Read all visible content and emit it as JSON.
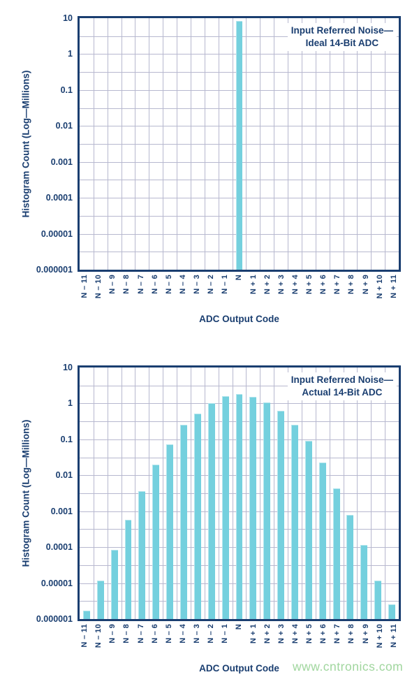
{
  "colors": {
    "navy_text_and_frame": "#1a3e70",
    "gridline": "#b7b8cf",
    "bar_fill": "#74d0de",
    "watermark_green": "#a0d69e",
    "background": "#ffffff"
  },
  "watermark": {
    "text": "www.cntronics.com"
  },
  "chart_data": [
    {
      "type": "bar",
      "title": "Input Referred Noise—Ideal 14-Bit ADC",
      "title_lines": [
        "Input Referred Noise—",
        "Ideal 14-Bit ADC"
      ],
      "xlabel": "ADC Output Code",
      "ylabel": "Histogram Count (Log—Millions)",
      "yscale": "log",
      "ylim": [
        1e-06,
        10
      ],
      "ytick_labels": [
        "10",
        "1",
        "0.1",
        "0.01",
        "0.001",
        "0.0001",
        "0.00001",
        "0.000001"
      ],
      "grid": true,
      "legend": "none",
      "categories": [
        "N – 11",
        "N – 10",
        "N – 9",
        "N – 8",
        "N – 7",
        "N – 6",
        "N – 5",
        "N – 4",
        "N – 3",
        "N – 2",
        "N – 1",
        "N",
        "N + 1",
        "N + 2",
        "N + 3",
        "N + 4",
        "N + 5",
        "N + 6",
        "N + 7",
        "N + 8",
        "N + 9",
        "N + 10",
        "N + 11"
      ],
      "values": [
        0,
        0,
        0,
        0,
        0,
        0,
        0,
        0,
        0,
        0,
        0,
        8.4,
        0,
        0,
        0,
        0,
        0,
        0,
        0,
        0,
        0,
        0,
        0
      ]
    },
    {
      "type": "bar",
      "title": "Input Referred Noise—Actual 14-Bit ADC",
      "title_lines": [
        "Input Referred Noise—",
        "Actual 14-Bit ADC"
      ],
      "xlabel": "ADC Output Code",
      "ylabel": "Histogram Count (Log—Millions)",
      "yscale": "log",
      "ylim": [
        1e-06,
        10
      ],
      "ytick_labels": [
        "10",
        "1",
        "0.1",
        "0.01",
        "0.001",
        "0.0001",
        "0.00001",
        "0.000001"
      ],
      "grid": true,
      "legend": "none",
      "categories": [
        "N – 11",
        "N – 10",
        "N – 9",
        "N – 8",
        "N – 7",
        "N – 6",
        "N – 5",
        "N – 4",
        "N – 3",
        "N – 2",
        "N – 1",
        "N",
        "N + 1",
        "N + 2",
        "N + 3",
        "N + 4",
        "N + 5",
        "N + 6",
        "N + 7",
        "N + 8",
        "N + 9",
        "N + 10",
        "N + 11"
      ],
      "values": [
        1.7e-06,
        1.15e-05,
        8.5e-05,
        0.00058,
        0.0037,
        0.02,
        0.072,
        0.25,
        0.53,
        1.0,
        1.6,
        1.8,
        1.55,
        1.05,
        0.62,
        0.25,
        0.09,
        0.023,
        0.0043,
        0.00078,
        0.000115,
        1.15e-05,
        2.6e-06
      ]
    }
  ]
}
